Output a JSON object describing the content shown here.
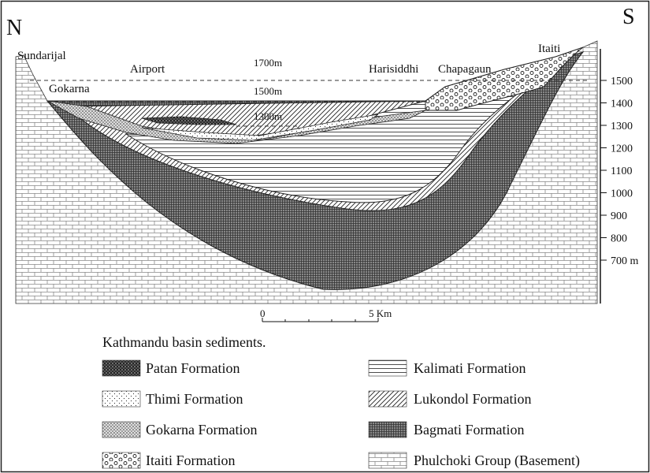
{
  "section": {
    "north": "N",
    "south": "S",
    "places": [
      "Sundarijal",
      "Gokarna",
      "Airport",
      "Harisiddhi",
      "Chapagaun",
      "Itaiti"
    ],
    "contours": [
      "1700m",
      "1500m",
      "1300m"
    ],
    "elevations": [
      "1500",
      "1400",
      "1300",
      "1200",
      "1100",
      "1000",
      "900",
      "800",
      "700 m"
    ]
  },
  "scale_bar": {
    "start": "0",
    "end": "5 Km"
  },
  "legend": {
    "title": "Kathmandu basin sediments.",
    "items": [
      "Patan Formation",
      "Thimi Formation",
      "Gokarna Formation",
      "Itaiti Formation",
      "Kalimati Formation",
      "Lukondol Formation",
      "Bagmati Formation",
      "Phulchoki Group (Basement)"
    ]
  }
}
